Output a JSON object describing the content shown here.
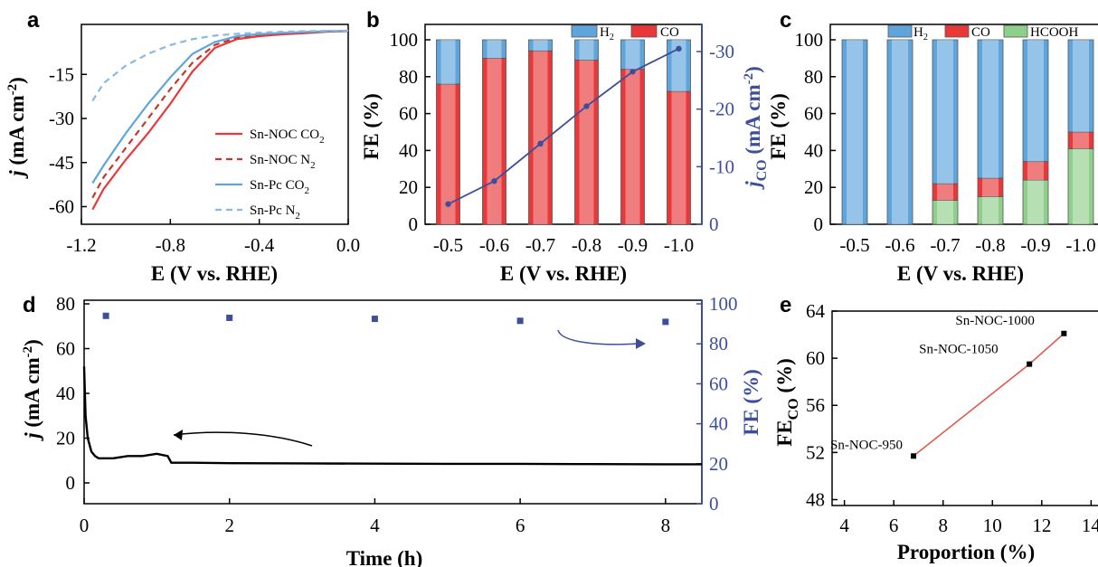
{
  "panels": {
    "a": {
      "letter": "a"
    },
    "b": {
      "letter": "b"
    },
    "c": {
      "letter": "c"
    },
    "d": {
      "letter": "d"
    },
    "e": {
      "letter": "e"
    }
  },
  "colors": {
    "red": "#e8383a",
    "blue": "#5fa5dc",
    "blue_light": "#8ab8df",
    "green": "#8fcf8b",
    "navy": "#3d4f9a",
    "black": "#000000"
  },
  "chart_data": [
    {
      "panel": "a",
      "type": "line",
      "xlabel": "E (V vs. RHE)",
      "ylabel_main": "j",
      "ylabel_rest": " (mA cm",
      "ylabel_sup": "-2",
      "ylabel_end": ")",
      "xlim": [
        -1.2,
        0.0
      ],
      "ylim": [
        -66,
        2
      ],
      "xticks": [
        -1.2,
        -0.8,
        -0.4,
        0.0
      ],
      "xtick_labels": [
        "-1.2",
        "-0.8",
        "-0.4",
        "0.0"
      ],
      "yticks": [
        -60,
        -45,
        -30,
        -15
      ],
      "ytick_labels": [
        "-60",
        "-45",
        "-30",
        "-15"
      ],
      "legend_position": "bottom-right",
      "series": [
        {
          "name": "Sn-NOC CO",
          "sub": "2",
          "color": "#e8383a",
          "dash": false,
          "x": [
            -1.15,
            -1.1,
            -1.0,
            -0.9,
            -0.8,
            -0.7,
            -0.6,
            -0.5,
            -0.4,
            -0.3,
            -0.2,
            -0.1,
            0.0
          ],
          "y": [
            -61,
            -54,
            -44,
            -35,
            -25,
            -14,
            -6,
            -3,
            -2,
            -1.4,
            -1,
            -0.5,
            -0.3
          ]
        },
        {
          "name": "Sn-NOC N",
          "sub": "2",
          "color": "#c0392b",
          "dash": true,
          "x": [
            -1.15,
            -1.1,
            -1.0,
            -0.9,
            -0.8,
            -0.7,
            -0.6,
            -0.5,
            -0.4,
            -0.3,
            -0.2,
            -0.1,
            0.0
          ],
          "y": [
            -57,
            -50,
            -40,
            -30,
            -20,
            -11,
            -5,
            -2.5,
            -1.5,
            -1,
            -0.8,
            -0.4,
            -0.2
          ]
        },
        {
          "name": "Sn-Pc CO",
          "sub": "2",
          "color": "#5fa5dc",
          "dash": false,
          "x": [
            -1.15,
            -1.1,
            -1.0,
            -0.9,
            -0.8,
            -0.7,
            -0.6,
            -0.5,
            -0.4,
            -0.3,
            -0.2,
            -0.1,
            0.0
          ],
          "y": [
            -52,
            -46,
            -35,
            -25,
            -16,
            -8,
            -4,
            -2,
            -1.3,
            -0.9,
            -0.6,
            -0.3,
            -0.2
          ]
        },
        {
          "name": "Sn-Pc N",
          "sub": "2",
          "color": "#8ab8df",
          "dash": true,
          "x": [
            -1.15,
            -1.1,
            -1.0,
            -0.9,
            -0.8,
            -0.7,
            -0.6,
            -0.5,
            -0.4,
            -0.3,
            -0.2,
            -0.1,
            0.0
          ],
          "y": [
            -24,
            -18,
            -12,
            -8,
            -5,
            -3,
            -1.8,
            -1.2,
            -0.8,
            -0.5,
            -0.3,
            -0.2,
            -0.1
          ]
        }
      ]
    },
    {
      "panel": "b",
      "type": "bar",
      "xlabel": "E (V vs. RHE)",
      "ylabel": "FE (%)",
      "ylabel_right_main": "j",
      "ylabel_right_sub": "CO",
      "ylabel_right_rest": " (mA cm",
      "ylabel_right_sup": "-2",
      "ylabel_right_end": ")",
      "categories": [
        "-0.5",
        "-0.6",
        "-0.7",
        "-0.8",
        "-0.9",
        "-1.0"
      ],
      "ylim": [
        0,
        100
      ],
      "yticks": [
        0,
        20,
        40,
        60,
        80,
        100
      ],
      "ytick_labels": [
        "0",
        "20",
        "40",
        "60",
        "80",
        "100"
      ],
      "y2lim": [
        0,
        -32
      ],
      "y2ticks": [
        0,
        -10,
        -20,
        -30
      ],
      "y2tick_labels": [
        "0",
        "-10",
        "-20",
        "-30"
      ],
      "legend_position": "top-right",
      "series": [
        {
          "name": "H",
          "sub": "2",
          "color": "#5fa5dc",
          "values": [
            24,
            10,
            6,
            11,
            16,
            28
          ]
        },
        {
          "name": "CO",
          "color": "#e8383a",
          "values": [
            76,
            90,
            94,
            89,
            84,
            72
          ]
        }
      ],
      "line_series": {
        "axis": "right",
        "color": "#3d4f9a",
        "values": [
          -3.5,
          -7.5,
          -14,
          -20.5,
          -26.5,
          -30.5
        ]
      }
    },
    {
      "panel": "c",
      "type": "bar",
      "xlabel": "E (V vs. RHE)",
      "ylabel": "FE (%)",
      "categories": [
        "-0.5",
        "-0.6",
        "-0.7",
        "-0.8",
        "-0.9",
        "-1.0"
      ],
      "ylim": [
        0,
        100
      ],
      "yticks": [
        0,
        20,
        40,
        60,
        80,
        100
      ],
      "ytick_labels": [
        "0",
        "20",
        "40",
        "60",
        "80",
        "100"
      ],
      "legend_position": "top-right",
      "series": [
        {
          "name": "HCOOH",
          "color": "#8fcf8b",
          "values": [
            0,
            0,
            13,
            15,
            24,
            41
          ]
        },
        {
          "name": "CO",
          "color": "#e8383a",
          "values": [
            0,
            0,
            9,
            10,
            10,
            9
          ]
        },
        {
          "name": "H",
          "sub": "2",
          "color": "#5fa5dc",
          "values": [
            100,
            100,
            78,
            75,
            66,
            50
          ]
        }
      ]
    },
    {
      "panel": "d",
      "type": "line",
      "xlabel": "Time (h)",
      "ylabel_main": "j",
      "ylabel_rest": " (mA cm",
      "ylabel_sup": "-2",
      "ylabel_end": ")",
      "ylabel_right": "FE (%)",
      "xlim": [
        0,
        8.5
      ],
      "xticks": [
        0,
        2,
        4,
        6,
        8
      ],
      "xtick_labels": [
        "0",
        "2",
        "4",
        "6",
        "8"
      ],
      "ylim": [
        -10,
        80
      ],
      "yticks": [
        0,
        20,
        40,
        60,
        80
      ],
      "ytick_labels": [
        "0",
        "20",
        "40",
        "60",
        "80"
      ],
      "y2lim": [
        0,
        100
      ],
      "y2ticks": [
        0,
        20,
        40,
        60,
        80,
        100
      ],
      "y2tick_labels": [
        "0",
        "20",
        "40",
        "60",
        "80",
        "100"
      ],
      "current_series": {
        "color": "#000000",
        "x": [
          0,
          0.02,
          0.05,
          0.1,
          0.15,
          0.2,
          0.4,
          0.6,
          0.8,
          1.0,
          1.15,
          1.2,
          1.5,
          2,
          3,
          4,
          5,
          6,
          7,
          8,
          8.5
        ],
        "y": [
          52,
          30,
          20,
          14,
          12,
          11,
          11,
          12,
          12,
          13,
          12,
          9,
          9,
          8.8,
          8.7,
          8.6,
          8.5,
          8.5,
          8.4,
          8.3,
          8.3
        ]
      },
      "fe_series": {
        "color": "#3d4f9a",
        "x": [
          0.3,
          2,
          4,
          6,
          8
        ],
        "y": [
          94,
          93,
          92.5,
          91.5,
          91
        ]
      }
    },
    {
      "panel": "e",
      "type": "line",
      "xlabel": "Proportion (%)",
      "ylabel_main": "FE",
      "ylabel_sub": "CO",
      "ylabel_rest": " (%)",
      "xlim": [
        3.5,
        14.5
      ],
      "xticks": [
        4,
        6,
        8,
        10,
        12,
        14
      ],
      "xtick_labels": [
        "4",
        "6",
        "8",
        "10",
        "12",
        "14"
      ],
      "ylim": [
        47.5,
        64
      ],
      "yticks": [
        48,
        52,
        56,
        60,
        64
      ],
      "ytick_labels": [
        "48",
        "52",
        "56",
        "60",
        "64"
      ],
      "series": [
        {
          "color": "#e05a4e",
          "x": [
            6.8,
            11.5,
            12.9
          ],
          "y": [
            51.7,
            59.5,
            62.1
          ]
        }
      ],
      "point_labels": [
        "Sn-NOC-950",
        "Sn-NOC-1050",
        "Sn-NOC-1000"
      ]
    }
  ]
}
